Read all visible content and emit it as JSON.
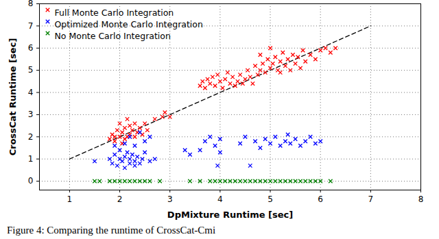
{
  "chart_data": {
    "type": "scatter",
    "caption": "Figure 4: Comparing the runtime of CrossCat-Cmi",
    "x_label": "DpMixture Runtime [sec]",
    "y_label": "CrossCat Runtime [sec]",
    "xlim": [
      0.4,
      8
    ],
    "ylim": [
      -0.4,
      8
    ],
    "xticks": [
      1,
      2,
      3,
      4,
      5,
      6,
      7,
      8
    ],
    "yticks": [
      0,
      1,
      2,
      3,
      4,
      5,
      6,
      7,
      8
    ],
    "grid": true,
    "legend": "upper left",
    "marker": "x",
    "series": [
      {
        "name": "Full Monte Carlo Integration",
        "color": "#ff0000",
        "x": [
          1.8,
          1.85,
          1.9,
          1.95,
          2.0,
          2.0,
          2.05,
          2.1,
          2.1,
          2.15,
          2.2,
          2.2,
          2.25,
          2.3,
          2.3,
          2.35,
          2.4,
          2.45,
          2.5,
          2.55,
          1.9,
          2.05,
          2.15,
          2.7,
          2.85,
          2.9,
          3.0,
          3.6,
          3.65,
          3.7,
          3.75,
          3.8,
          3.85,
          3.9,
          3.95,
          4.0,
          4.05,
          4.1,
          4.15,
          4.2,
          4.25,
          4.3,
          4.35,
          4.4,
          4.45,
          4.5,
          4.55,
          4.6,
          4.65,
          4.7,
          4.75,
          4.8,
          4.85,
          4.9,
          4.95,
          5.0,
          5.05,
          5.1,
          5.15,
          5.2,
          5.25,
          5.3,
          5.35,
          5.4,
          5.45,
          5.5,
          5.55,
          5.6,
          5.65,
          5.7,
          5.8,
          5.9,
          6.0,
          6.1,
          6.2,
          6.3,
          5.0,
          4.8,
          5.2
        ],
        "values": [
          1.9,
          2.1,
          1.8,
          2.3,
          2.0,
          2.6,
          2.2,
          1.9,
          2.4,
          2.8,
          2.1,
          2.5,
          2.3,
          2.0,
          2.6,
          2.2,
          2.4,
          2.1,
          2.6,
          2.3,
          2.0,
          1.7,
          2.0,
          2.8,
          2.9,
          3.1,
          2.9,
          4.3,
          4.5,
          4.2,
          4.6,
          4.4,
          4.7,
          4.3,
          4.8,
          4.5,
          4.2,
          4.6,
          4.9,
          4.4,
          4.7,
          4.3,
          4.5,
          4.8,
          4.4,
          4.6,
          5.0,
          4.7,
          4.4,
          5.2,
          4.8,
          5.0,
          5.3,
          4.9,
          5.5,
          5.1,
          5.3,
          5.6,
          5.0,
          5.4,
          5.8,
          5.2,
          5.5,
          5.0,
          5.7,
          5.3,
          5.6,
          5.1,
          5.9,
          5.4,
          5.7,
          5.5,
          5.9,
          6.0,
          5.8,
          6.0,
          6.0,
          5.7,
          4.9
        ]
      },
      {
        "name": "Optimized Monte Carlo Integration",
        "color": "#0000ff",
        "x": [
          1.5,
          1.8,
          1.85,
          1.9,
          1.95,
          2.0,
          2.0,
          2.05,
          2.1,
          2.1,
          2.15,
          2.2,
          2.2,
          2.25,
          2.3,
          2.3,
          2.35,
          2.4,
          2.45,
          2.5,
          2.6,
          2.7,
          2.1,
          2.2,
          2.3,
          2.4,
          2.5,
          2.6,
          1.9,
          3.6,
          3.7,
          3.8,
          3.9,
          4.0,
          3.95,
          4.0,
          4.6,
          4.7,
          4.8,
          4.9,
          5.0,
          5.1,
          5.2,
          5.3,
          5.35,
          5.4,
          5.5,
          5.6,
          5.7,
          5.8,
          5.9,
          6.0,
          4.4,
          4.5,
          3.4,
          3.3
        ],
        "values": [
          0.9,
          1.0,
          0.8,
          1.2,
          0.7,
          1.0,
          1.4,
          0.9,
          1.1,
          0.6,
          1.3,
          0.8,
          1.0,
          1.2,
          0.9,
          0.7,
          1.1,
          0.8,
          1.0,
          1.3,
          0.9,
          1.0,
          1.7,
          2.0,
          1.6,
          2.2,
          1.8,
          2.0,
          1.6,
          1.4,
          1.8,
          2.0,
          1.6,
          1.9,
          0.7,
          1.3,
          0.7,
          1.8,
          1.5,
          1.9,
          1.7,
          2.0,
          1.6,
          1.8,
          2.1,
          1.7,
          1.9,
          1.6,
          1.8,
          2.0,
          1.7,
          1.8,
          1.7,
          2.0,
          1.2,
          1.4
        ]
      },
      {
        "name": "No Monte Carlo Integration",
        "color": "#008000",
        "x": [
          1.5,
          1.6,
          1.8,
          1.9,
          2.0,
          2.1,
          2.2,
          2.3,
          2.4,
          2.5,
          2.6,
          2.8,
          3.4,
          3.6,
          3.8,
          3.9,
          4.0,
          4.1,
          4.2,
          4.3,
          4.4,
          4.5,
          4.6,
          4.7,
          4.8,
          4.9,
          5.0,
          5.1,
          5.2,
          5.3,
          5.4,
          5.5,
          5.6,
          5.7,
          5.8,
          5.9,
          6.0,
          6.2
        ],
        "values": [
          0,
          0,
          0,
          0,
          0,
          0,
          0,
          0,
          0,
          0,
          0,
          0,
          0,
          0,
          0,
          0,
          0,
          0,
          0,
          0,
          0,
          0,
          0,
          0,
          0,
          0,
          0,
          0,
          0,
          0,
          0,
          0,
          0,
          0,
          0,
          0,
          0,
          0
        ]
      }
    ],
    "lines": [
      {
        "x": [
          1,
          7
        ],
        "values": [
          1,
          7
        ],
        "color": "#000000",
        "line_style": "dashed"
      }
    ]
  }
}
